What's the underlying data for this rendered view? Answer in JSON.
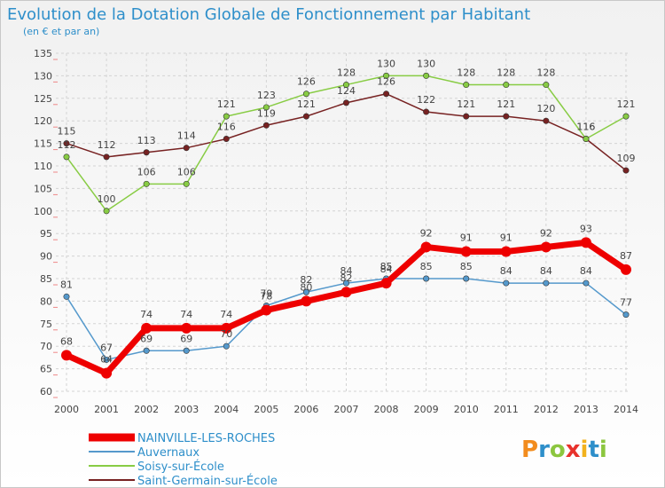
{
  "chart_data": {
    "type": "line",
    "title": "Evolution de la Dotation Globale de Fonctionnement par Habitant",
    "subtitle": "(en € et par an)",
    "categories": [
      "2000",
      "2001",
      "2002",
      "2003",
      "2004",
      "2005",
      "2006",
      "2007",
      "2008",
      "2009",
      "2010",
      "2011",
      "2012",
      "2013",
      "2014"
    ],
    "ylim": [
      60,
      135
    ],
    "yticks": [
      60,
      65,
      70,
      75,
      80,
      85,
      90,
      95,
      100,
      105,
      110,
      115,
      120,
      125,
      130,
      135
    ],
    "grid": true,
    "legend_position": "bottom-left",
    "series": [
      {
        "name": "NAINVILLE-LES-ROCHES",
        "color": "#ee0000",
        "values": [
          68,
          64,
          74,
          74,
          74,
          78,
          80,
          82,
          84,
          92,
          91,
          91,
          92,
          93,
          87
        ]
      },
      {
        "name": "Auvernaux",
        "color": "#5599cc",
        "values": [
          81,
          67,
          69,
          69,
          70,
          79,
          82,
          84,
          85,
          85,
          85,
          84,
          84,
          84,
          77
        ]
      },
      {
        "name": "Soisy-sur-École",
        "color": "#88cc44",
        "values": [
          112,
          100,
          106,
          106,
          121,
          123,
          126,
          128,
          130,
          130,
          128,
          128,
          128,
          116,
          121
        ]
      },
      {
        "name": "Saint-Germain-sur-École",
        "color": "#772222",
        "values": [
          115,
          112,
          113,
          114,
          116,
          119,
          121,
          124,
          126,
          122,
          121,
          121,
          120,
          116,
          109
        ]
      }
    ]
  },
  "branding": {
    "logo_text": "Proxiti"
  }
}
